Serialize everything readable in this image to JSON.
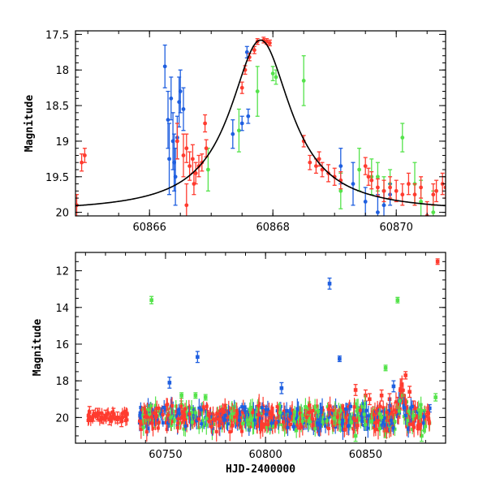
{
  "colors": {
    "red": "#ff3b2f",
    "green": "#55e34b",
    "blue": "#1f5fe0",
    "model": "#000000"
  },
  "chart_data": [
    {
      "type": "scatter",
      "panel": "top",
      "title": "",
      "xlabel": "",
      "ylabel": "Magnitude",
      "xlim": [
        60864.8,
        60870.8
      ],
      "ylim": [
        20.05,
        17.45
      ],
      "y_inverted": true,
      "xticks": [
        60866,
        60868,
        60870
      ],
      "yticks": [
        17.5,
        18,
        18.5,
        19,
        19.5,
        20
      ],
      "xtick_labels": [
        "60866",
        "60868",
        "60870"
      ],
      "ytick_labels": [
        "17.5",
        "18",
        "18.5",
        "19",
        "19.5",
        "20"
      ],
      "model": {
        "peak_x": 60867.8,
        "peak_y": 17.58,
        "baseline_y": 20.0,
        "amplitude": 2.42,
        "tau": 0.6
      },
      "series": [
        {
          "color": "red",
          "points": [
            [
              60864.82,
              19.9,
              0.15
            ],
            [
              60864.9,
              19.3,
              0.12
            ],
            [
              60864.95,
              19.2,
              0.1
            ],
            [
              60866.45,
              19.0,
              0.25
            ],
            [
              60866.55,
              19.2,
              0.3
            ],
            [
              60866.6,
              19.9,
              0.3
            ],
            [
              60866.6,
              19.1,
              0.2
            ],
            [
              60866.65,
              19.35,
              0.2
            ],
            [
              60866.7,
              19.25,
              0.2
            ],
            [
              60866.72,
              19.6,
              0.15
            ],
            [
              60866.75,
              19.45,
              0.15
            ],
            [
              60866.8,
              19.35,
              0.15
            ],
            [
              60866.85,
              19.3,
              0.12
            ],
            [
              60866.9,
              18.75,
              0.12
            ],
            [
              60866.92,
              19.1,
              0.12
            ],
            [
              60867.5,
              18.25,
              0.08
            ],
            [
              60867.55,
              18.0,
              0.06
            ],
            [
              60867.62,
              17.82,
              0.05
            ],
            [
              60867.7,
              17.72,
              0.05
            ],
            [
              60867.75,
              17.6,
              0.04
            ],
            [
              60867.85,
              17.58,
              0.04
            ],
            [
              60867.9,
              17.6,
              0.04
            ],
            [
              60867.95,
              17.62,
              0.04
            ],
            [
              60868.5,
              19.0,
              0.08
            ],
            [
              60868.6,
              19.3,
              0.1
            ],
            [
              60868.7,
              19.35,
              0.1
            ],
            [
              60868.75,
              19.25,
              0.1
            ],
            [
              60868.8,
              19.4,
              0.1
            ],
            [
              60868.9,
              19.45,
              0.12
            ],
            [
              60869.0,
              19.5,
              0.12
            ],
            [
              60869.1,
              19.55,
              0.12
            ],
            [
              60869.5,
              19.35,
              0.12
            ],
            [
              60869.55,
              19.5,
              0.12
            ],
            [
              60869.6,
              19.55,
              0.12
            ],
            [
              60869.7,
              19.65,
              0.12
            ],
            [
              60869.8,
              19.7,
              0.15
            ],
            [
              60869.9,
              19.65,
              0.15
            ],
            [
              60870.0,
              19.7,
              0.15
            ],
            [
              60870.1,
              19.75,
              0.15
            ],
            [
              60870.2,
              19.6,
              0.15
            ],
            [
              60870.3,
              19.75,
              0.15
            ],
            [
              60870.4,
              19.65,
              0.15
            ],
            [
              60870.5,
              20.05,
              0.2
            ],
            [
              60870.6,
              19.75,
              0.15
            ],
            [
              60870.65,
              19.7,
              0.15
            ],
            [
              60870.75,
              19.6,
              0.15
            ],
            [
              60870.8,
              19.65,
              0.15
            ]
          ]
        },
        {
          "color": "green",
          "points": [
            [
              60866.95,
              19.4,
              0.3
            ],
            [
              60867.45,
              18.85,
              0.3
            ],
            [
              60867.75,
              18.3,
              0.35
            ],
            [
              60868.0,
              18.05,
              0.1
            ],
            [
              60868.05,
              18.1,
              0.1
            ],
            [
              60868.5,
              18.15,
              0.35
            ],
            [
              60869.1,
              19.7,
              0.25
            ],
            [
              60869.4,
              19.4,
              0.3
            ],
            [
              60869.6,
              19.5,
              0.25
            ],
            [
              60869.7,
              19.5,
              0.2
            ],
            [
              60869.8,
              19.7,
              0.2
            ],
            [
              60869.9,
              19.6,
              0.2
            ],
            [
              60870.1,
              18.95,
              0.2
            ],
            [
              60870.3,
              19.6,
              0.3
            ],
            [
              60870.4,
              19.85,
              0.3
            ],
            [
              60870.6,
              20.0,
              0.3
            ]
          ]
        },
        {
          "color": "blue",
          "points": [
            [
              60866.25,
              17.95,
              0.3
            ],
            [
              60866.3,
              18.7,
              0.4
            ],
            [
              60866.32,
              19.25,
              0.5
            ],
            [
              60866.35,
              18.4,
              0.3
            ],
            [
              60866.38,
              19.0,
              0.4
            ],
            [
              60866.4,
              19.3,
              0.4
            ],
            [
              60866.42,
              19.5,
              0.4
            ],
            [
              60866.45,
              18.95,
              0.3
            ],
            [
              60866.48,
              18.45,
              0.35
            ],
            [
              60866.5,
              18.3,
              0.3
            ],
            [
              60866.55,
              18.55,
              0.3
            ],
            [
              60867.35,
              18.9,
              0.2
            ],
            [
              60867.5,
              18.75,
              0.1
            ],
            [
              60867.58,
              17.75,
              0.08
            ],
            [
              60867.6,
              18.65,
              0.1
            ],
            [
              60869.1,
              19.35,
              0.25
            ],
            [
              60869.3,
              19.6,
              0.3
            ],
            [
              60869.5,
              19.85,
              0.2
            ],
            [
              60869.7,
              20.0,
              0.25
            ],
            [
              60869.8,
              19.9,
              0.2
            ],
            [
              60869.9,
              19.75,
              0.15
            ]
          ]
        }
      ]
    },
    {
      "type": "scatter",
      "panel": "bottom",
      "title": "",
      "xlabel": "HJD-2400000",
      "ylabel": "Magnitude",
      "xlim": [
        60705,
        60890
      ],
      "ylim": [
        21.4,
        11.0
      ],
      "y_inverted": true,
      "xticks": [
        60750,
        60800,
        60850
      ],
      "yticks": [
        12,
        14,
        16,
        18,
        20
      ],
      "xtick_labels": [
        "60750",
        "60800",
        "60850"
      ],
      "ytick_labels": [
        "12",
        "14",
        "16",
        "18",
        "20"
      ],
      "series": [
        {
          "color": "red",
          "points": [
            [
              60712,
              19.7,
              0.3
            ],
            [
              60714,
              19.9,
              0.3
            ],
            [
              60716,
              19.8,
              0.3
            ],
            [
              60718,
              20.0,
              0.3
            ],
            [
              60720,
              19.9,
              0.3
            ],
            [
              60722,
              20.1,
              0.3
            ],
            [
              60724,
              19.8,
              0.3
            ],
            [
              60726,
              20.0,
              0.3
            ],
            [
              60728,
              20.2,
              0.3
            ],
            [
              60730,
              19.9,
              0.3
            ],
            [
              60870,
              17.7,
              0.2
            ],
            [
              60868,
              18.2,
              0.3
            ],
            [
              60872,
              18.6,
              0.3
            ],
            [
              60866,
              19.2,
              0.3
            ],
            [
              60874,
              19.4,
              0.3
            ],
            [
              60858,
              18.8,
              0.3
            ],
            [
              60862,
              19.0,
              0.3
            ],
            [
              60886,
              11.5,
              0.15
            ],
            [
              60845,
              18.5,
              0.3
            ],
            [
              60850,
              18.8,
              0.3
            ],
            [
              60852,
              19.0,
              0.3
            ]
          ]
        },
        {
          "color": "green",
          "points": [
            [
              60743,
              13.6,
              0.2
            ],
            [
              60866,
              13.6,
              0.15
            ],
            [
              60860,
              17.3,
              0.15
            ],
            [
              60758,
              18.8,
              0.15
            ],
            [
              60765,
              18.8,
              0.15
            ],
            [
              60770,
              18.9,
              0.15
            ],
            [
              60740,
              19.6,
              0.2
            ],
            [
              60758,
              19.3,
              0.2
            ],
            [
              60780,
              19.5,
              0.2
            ],
            [
              60792,
              19.7,
              0.2
            ],
            [
              60820,
              19.6,
              0.2
            ],
            [
              60845,
              21.0,
              0.3
            ],
            [
              60860,
              20.8,
              0.3
            ],
            [
              60878,
              21.0,
              0.3
            ],
            [
              60885,
              18.9,
              0.2
            ]
          ]
        },
        {
          "color": "blue",
          "points": [
            [
              60832,
              12.7,
              0.3
            ],
            [
              60766,
              16.7,
              0.3
            ],
            [
              60752,
              18.1,
              0.3
            ],
            [
              60837,
              16.8,
              0.15
            ],
            [
              60808,
              18.4,
              0.3
            ],
            [
              60864,
              18.3,
              0.3
            ],
            [
              60882,
              19.5,
              0.2
            ],
            [
              60790,
              19.7,
              0.2
            ],
            [
              60800,
              19.6,
              0.2
            ],
            [
              60820,
              19.8,
              0.2
            ],
            [
              60840,
              19.9,
              0.2
            ],
            [
              60850,
              20.4,
              0.3
            ]
          ]
        }
      ]
    }
  ]
}
